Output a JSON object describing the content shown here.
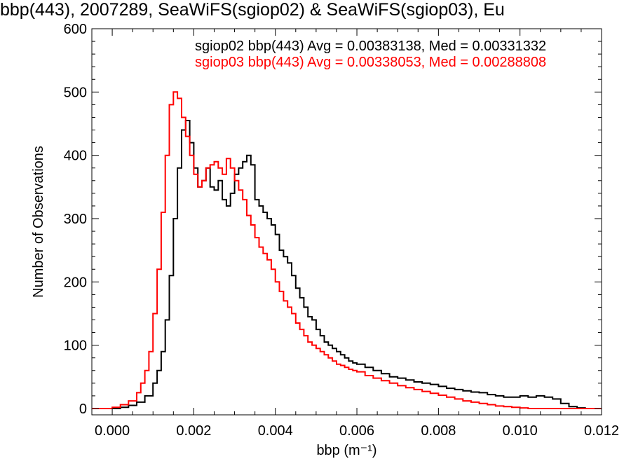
{
  "chart_data": {
    "type": "line",
    "title": "bbp(443), 2007289, SeaWiFS(sgiop02) & SeaWiFS(sgiop03), Eu",
    "xlabel": "bbp (m⁻¹)",
    "ylabel": "Number of Observations",
    "xlim": [
      -0.0005,
      0.012
    ],
    "ylim": [
      -10,
      600
    ],
    "x_ticks": [
      "0.000",
      "0.002",
      "0.004",
      "0.006",
      "0.008",
      "0.010",
      "0.012"
    ],
    "y_ticks": [
      "0",
      "100",
      "200",
      "300",
      "400",
      "500",
      "600"
    ],
    "series": [
      {
        "name": "sgiop02 bbp(443) Avg = 0.00383138, Med = 0.00331332",
        "color": "#000000",
        "points": [
          [
            -0.0005,
            0
          ],
          [
            0.0,
            0
          ],
          [
            0.0002,
            2
          ],
          [
            0.0004,
            5
          ],
          [
            0.0006,
            10
          ],
          [
            0.0008,
            20
          ],
          [
            0.001,
            40
          ],
          [
            0.0011,
            60
          ],
          [
            0.0012,
            90
          ],
          [
            0.0013,
            140
          ],
          [
            0.0014,
            210
          ],
          [
            0.0015,
            300
          ],
          [
            0.0016,
            380
          ],
          [
            0.0017,
            440
          ],
          [
            0.0018,
            455
          ],
          [
            0.0019,
            420
          ],
          [
            0.002,
            380
          ],
          [
            0.0021,
            350
          ],
          [
            0.0022,
            360
          ],
          [
            0.0023,
            380
          ],
          [
            0.0024,
            350
          ],
          [
            0.0025,
            345
          ],
          [
            0.0026,
            360
          ],
          [
            0.0027,
            330
          ],
          [
            0.0028,
            320
          ],
          [
            0.0029,
            340
          ],
          [
            0.003,
            370
          ],
          [
            0.0031,
            380
          ],
          [
            0.0032,
            390
          ],
          [
            0.0033,
            400
          ],
          [
            0.0034,
            385
          ],
          [
            0.0035,
            330
          ],
          [
            0.0036,
            320
          ],
          [
            0.0037,
            310
          ],
          [
            0.0038,
            300
          ],
          [
            0.0039,
            290
          ],
          [
            0.004,
            275
          ],
          [
            0.0041,
            250
          ],
          [
            0.0042,
            240
          ],
          [
            0.0043,
            230
          ],
          [
            0.0044,
            210
          ],
          [
            0.0045,
            190
          ],
          [
            0.0046,
            175
          ],
          [
            0.0047,
            160
          ],
          [
            0.0048,
            145
          ],
          [
            0.0049,
            140
          ],
          [
            0.005,
            125
          ],
          [
            0.0051,
            115
          ],
          [
            0.0052,
            105
          ],
          [
            0.0053,
            100
          ],
          [
            0.0054,
            95
          ],
          [
            0.0055,
            90
          ],
          [
            0.0056,
            85
          ],
          [
            0.0057,
            80
          ],
          [
            0.0058,
            75
          ],
          [
            0.0059,
            72
          ],
          [
            0.006,
            70
          ],
          [
            0.0062,
            65
          ],
          [
            0.0064,
            60
          ],
          [
            0.0066,
            55
          ],
          [
            0.0068,
            50
          ],
          [
            0.007,
            48
          ],
          [
            0.0072,
            45
          ],
          [
            0.0074,
            42
          ],
          [
            0.0076,
            40
          ],
          [
            0.0078,
            38
          ],
          [
            0.008,
            35
          ],
          [
            0.0082,
            32
          ],
          [
            0.0084,
            30
          ],
          [
            0.0086,
            28
          ],
          [
            0.0088,
            26
          ],
          [
            0.009,
            25
          ],
          [
            0.0092,
            22
          ],
          [
            0.0094,
            20
          ],
          [
            0.0096,
            18
          ],
          [
            0.0098,
            18
          ],
          [
            0.01,
            20
          ],
          [
            0.0102,
            18
          ],
          [
            0.0104,
            20
          ],
          [
            0.0106,
            18
          ],
          [
            0.0108,
            15
          ],
          [
            0.011,
            8
          ],
          [
            0.0112,
            3
          ],
          [
            0.0114,
            1
          ],
          [
            0.0116,
            0
          ],
          [
            0.012,
            0
          ]
        ]
      },
      {
        "name": "sgiop03 bbp(443) Avg = 0.00338053, Med = 0.00288808",
        "color": "#ff0000",
        "points": [
          [
            -0.0005,
            0
          ],
          [
            0.0,
            2
          ],
          [
            0.0002,
            6
          ],
          [
            0.0004,
            12
          ],
          [
            0.0006,
            25
          ],
          [
            0.0007,
            40
          ],
          [
            0.0008,
            60
          ],
          [
            0.0009,
            90
          ],
          [
            0.001,
            150
          ],
          [
            0.0011,
            220
          ],
          [
            0.0012,
            310
          ],
          [
            0.0013,
            400
          ],
          [
            0.0014,
            480
          ],
          [
            0.0015,
            500
          ],
          [
            0.0016,
            490
          ],
          [
            0.0017,
            460
          ],
          [
            0.0018,
            430
          ],
          [
            0.0019,
            400
          ],
          [
            0.002,
            370
          ],
          [
            0.0021,
            350
          ],
          [
            0.0022,
            360
          ],
          [
            0.0023,
            380
          ],
          [
            0.0024,
            385
          ],
          [
            0.0025,
            390
          ],
          [
            0.0026,
            380
          ],
          [
            0.0027,
            370
          ],
          [
            0.0028,
            395
          ],
          [
            0.0029,
            380
          ],
          [
            0.003,
            360
          ],
          [
            0.0031,
            345
          ],
          [
            0.0032,
            330
          ],
          [
            0.0033,
            305
          ],
          [
            0.0034,
            290
          ],
          [
            0.0035,
            270
          ],
          [
            0.0036,
            255
          ],
          [
            0.0037,
            245
          ],
          [
            0.0038,
            235
          ],
          [
            0.0039,
            220
          ],
          [
            0.004,
            200
          ],
          [
            0.0041,
            185
          ],
          [
            0.0042,
            170
          ],
          [
            0.0043,
            160
          ],
          [
            0.0044,
            150
          ],
          [
            0.0045,
            135
          ],
          [
            0.0046,
            125
          ],
          [
            0.0047,
            115
          ],
          [
            0.0048,
            105
          ],
          [
            0.0049,
            100
          ],
          [
            0.005,
            95
          ],
          [
            0.0051,
            90
          ],
          [
            0.0052,
            85
          ],
          [
            0.0053,
            80
          ],
          [
            0.0054,
            75
          ],
          [
            0.0055,
            70
          ],
          [
            0.0056,
            68
          ],
          [
            0.0057,
            65
          ],
          [
            0.0058,
            62
          ],
          [
            0.0059,
            60
          ],
          [
            0.006,
            58
          ],
          [
            0.0062,
            52
          ],
          [
            0.0064,
            48
          ],
          [
            0.0066,
            44
          ],
          [
            0.0068,
            40
          ],
          [
            0.007,
            36
          ],
          [
            0.0072,
            33
          ],
          [
            0.0074,
            30
          ],
          [
            0.0076,
            27
          ],
          [
            0.0078,
            24
          ],
          [
            0.008,
            21
          ],
          [
            0.0082,
            18
          ],
          [
            0.0084,
            15
          ],
          [
            0.0086,
            12
          ],
          [
            0.0088,
            10
          ],
          [
            0.009,
            8
          ],
          [
            0.0092,
            6
          ],
          [
            0.0094,
            4
          ],
          [
            0.0096,
            3
          ],
          [
            0.0098,
            2
          ],
          [
            0.01,
            1
          ],
          [
            0.0102,
            0
          ],
          [
            0.012,
            0
          ]
        ]
      }
    ]
  }
}
